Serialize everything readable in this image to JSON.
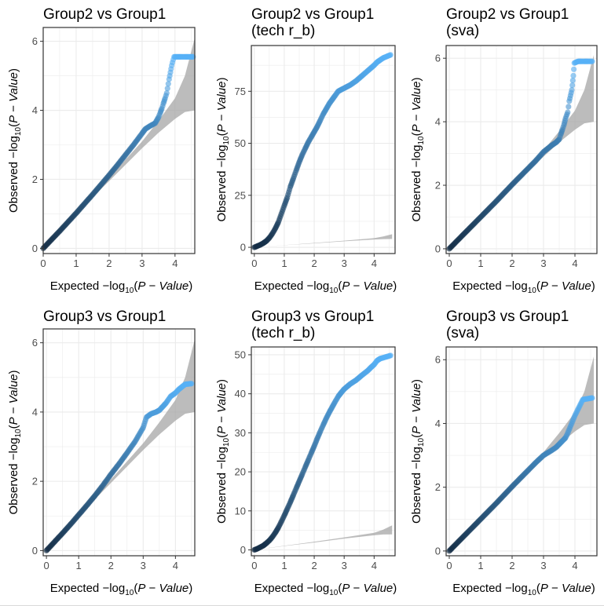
{
  "chart_data": [
    {
      "type": "scatter",
      "title": [
        "Group2 vs Group1"
      ],
      "xlabel": "Expected  -log10(P - Value)",
      "ylabel": "Observed  -log10(P - Value)",
      "xlim": [
        0,
        4.6
      ],
      "ylim": [
        -0.15,
        6.4
      ],
      "xticks": [
        0,
        1,
        2,
        3,
        4
      ],
      "yticks": [
        0,
        2,
        4,
        6
      ],
      "grid": true,
      "points": [
        [
          0,
          0
        ],
        [
          0.25,
          0.25
        ],
        [
          0.5,
          0.5
        ],
        [
          0.75,
          0.76
        ],
        [
          1,
          1.02
        ],
        [
          1.25,
          1.29
        ],
        [
          1.5,
          1.56
        ],
        [
          1.75,
          1.84
        ],
        [
          2,
          2.12
        ],
        [
          2.25,
          2.41
        ],
        [
          2.5,
          2.71
        ],
        [
          2.75,
          3.01
        ],
        [
          3,
          3.33
        ],
        [
          3.1,
          3.46
        ],
        [
          3.25,
          3.55
        ],
        [
          3.4,
          3.63
        ],
        [
          3.5,
          3.8
        ],
        [
          3.55,
          3.92
        ],
        [
          3.6,
          4.05
        ],
        [
          3.65,
          4.2
        ],
        [
          3.7,
          4.35
        ],
        [
          3.75,
          4.5
        ],
        [
          3.82,
          4.9
        ],
        [
          3.9,
          5.3
        ],
        [
          3.97,
          5.55
        ],
        [
          4.1,
          5.55
        ],
        [
          4.2,
          5.55
        ],
        [
          4.3,
          5.55
        ],
        [
          4.4,
          5.55
        ],
        [
          4.55,
          5.55
        ]
      ],
      "ci_band": {
        "x": [
          0,
          1,
          2,
          3,
          3.5,
          4,
          4.3,
          4.6
        ],
        "lower": [
          0,
          1,
          1.95,
          2.9,
          3.35,
          3.75,
          3.95,
          4.0
        ],
        "upper": [
          0,
          1,
          2.05,
          3.1,
          3.7,
          4.35,
          5.0,
          6.1
        ]
      }
    },
    {
      "type": "scatter",
      "title": [
        "Group2 vs Group1",
        "(tech r_b)"
      ],
      "xlabel": "Expected  -log10(P - Value)",
      "ylabel": "Observed  -log10(P - Value)",
      "xlim": [
        -0.1,
        4.7
      ],
      "ylim": [
        -3,
        97
      ],
      "xticks": [
        0,
        1,
        2,
        3,
        4
      ],
      "yticks": [
        0,
        25,
        50,
        75
      ],
      "grid": true,
      "points": [
        [
          0,
          0
        ],
        [
          0.1,
          0.6
        ],
        [
          0.2,
          1.2
        ],
        [
          0.3,
          2
        ],
        [
          0.4,
          3
        ],
        [
          0.5,
          4.5
        ],
        [
          0.6,
          6.5
        ],
        [
          0.7,
          9
        ],
        [
          0.8,
          12
        ],
        [
          0.9,
          16
        ],
        [
          1,
          20
        ],
        [
          1.1,
          24
        ],
        [
          1.2,
          29
        ],
        [
          1.3,
          33
        ],
        [
          1.4,
          37
        ],
        [
          1.5,
          41
        ],
        [
          1.6,
          44.5
        ],
        [
          1.7,
          47.5
        ],
        [
          1.8,
          50.5
        ],
        [
          1.9,
          53
        ],
        [
          2,
          55.5
        ],
        [
          2.1,
          58
        ],
        [
          2.2,
          61
        ],
        [
          2.3,
          64
        ],
        [
          2.4,
          66.5
        ],
        [
          2.5,
          69
        ],
        [
          2.6,
          71
        ],
        [
          2.7,
          73
        ],
        [
          2.8,
          75
        ],
        [
          3,
          76.5
        ],
        [
          3.2,
          78
        ],
        [
          3.4,
          80
        ],
        [
          3.6,
          82.5
        ],
        [
          3.8,
          85
        ],
        [
          4,
          87.5
        ],
        [
          4.1,
          89
        ],
        [
          4.2,
          90
        ],
        [
          4.3,
          91
        ],
        [
          4.55,
          92.5
        ]
      ],
      "ci_band": {
        "x": [
          0,
          1,
          2,
          3,
          4,
          4.3,
          4.6
        ],
        "lower": [
          0,
          1,
          1.9,
          2.9,
          3.75,
          3.95,
          4.0
        ],
        "upper": [
          0,
          1.05,
          2.1,
          3.2,
          4.4,
          5.2,
          6.3
        ]
      }
    },
    {
      "type": "scatter",
      "title": [
        "Group2 vs Group1",
        "(sva)"
      ],
      "xlabel": "Expected  -log10(P - Value)",
      "ylabel": "Observed  -log10(P - Value)",
      "xlim": [
        -0.1,
        4.7
      ],
      "ylim": [
        -0.15,
        6.4
      ],
      "xticks": [
        0,
        1,
        2,
        3,
        4
      ],
      "yticks": [
        0,
        2,
        4,
        6
      ],
      "grid": true,
      "points": [
        [
          0,
          0
        ],
        [
          0.25,
          0.25
        ],
        [
          0.5,
          0.5
        ],
        [
          0.75,
          0.75
        ],
        [
          1,
          1.0
        ],
        [
          1.25,
          1.25
        ],
        [
          1.5,
          1.5
        ],
        [
          1.75,
          1.76
        ],
        [
          2,
          2.02
        ],
        [
          2.25,
          2.27
        ],
        [
          2.5,
          2.52
        ],
        [
          2.75,
          2.77
        ],
        [
          3,
          3.05
        ],
        [
          3.25,
          3.25
        ],
        [
          3.4,
          3.35
        ],
        [
          3.5,
          3.45
        ],
        [
          3.55,
          3.6
        ],
        [
          3.6,
          3.75
        ],
        [
          3.65,
          3.9
        ],
        [
          3.7,
          4.1
        ],
        [
          3.77,
          4.3
        ],
        [
          3.82,
          4.65
        ],
        [
          3.9,
          5.0
        ],
        [
          3.95,
          5.45
        ],
        [
          3.98,
          5.85
        ],
        [
          4.1,
          5.9
        ],
        [
          4.2,
          5.9
        ],
        [
          4.3,
          5.9
        ],
        [
          4.4,
          5.9
        ],
        [
          4.55,
          5.9
        ]
      ],
      "ci_band": {
        "x": [
          0,
          1,
          2,
          3,
          3.5,
          4,
          4.3,
          4.6
        ],
        "lower": [
          0,
          1,
          1.95,
          2.9,
          3.35,
          3.75,
          3.95,
          4.0
        ],
        "upper": [
          0,
          1,
          2.05,
          3.1,
          3.7,
          4.35,
          5.0,
          6.1
        ]
      }
    },
    {
      "type": "scatter",
      "title": [
        "Group3 vs Group1"
      ],
      "xlabel": "Expected  -log10(P - Value)",
      "ylabel": "Observed  -log10(P - Value)",
      "xlim": [
        -0.1,
        4.6
      ],
      "ylim": [
        -0.15,
        6.4
      ],
      "xticks": [
        0,
        1,
        2,
        3,
        4
      ],
      "yticks": [
        0,
        2,
        4,
        6
      ],
      "grid": true,
      "points": [
        [
          0,
          0
        ],
        [
          0.25,
          0.25
        ],
        [
          0.5,
          0.5
        ],
        [
          0.75,
          0.76
        ],
        [
          1,
          1.03
        ],
        [
          1.25,
          1.3
        ],
        [
          1.5,
          1.58
        ],
        [
          1.75,
          1.88
        ],
        [
          2,
          2.2
        ],
        [
          2.25,
          2.5
        ],
        [
          2.5,
          2.82
        ],
        [
          2.75,
          3.15
        ],
        [
          3,
          3.55
        ],
        [
          3.1,
          3.85
        ],
        [
          3.25,
          3.95
        ],
        [
          3.4,
          4.0
        ],
        [
          3.5,
          4.05
        ],
        [
          3.6,
          4.15
        ],
        [
          3.7,
          4.25
        ],
        [
          3.85,
          4.45
        ],
        [
          4.0,
          4.55
        ],
        [
          4.1,
          4.65
        ],
        [
          4.3,
          4.8
        ],
        [
          4.5,
          4.82
        ]
      ],
      "ci_band": {
        "x": [
          0,
          1,
          2,
          3,
          3.5,
          4,
          4.3,
          4.6
        ],
        "lower": [
          0,
          1,
          1.95,
          2.9,
          3.35,
          3.75,
          3.95,
          4.0
        ],
        "upper": [
          0,
          1,
          2.05,
          3.1,
          3.7,
          4.35,
          5.0,
          6.1
        ]
      }
    },
    {
      "type": "scatter",
      "title": [
        "Group3 vs Group1",
        "(tech r_b)"
      ],
      "xlabel": "Expected  -log10(P - Value)",
      "ylabel": "Observed  -log10(P - Value)",
      "xlim": [
        -0.1,
        4.7
      ],
      "ylim": [
        -1.5,
        52
      ],
      "xticks": [
        0,
        1,
        2,
        3,
        4
      ],
      "yticks": [
        0,
        10,
        20,
        30,
        40,
        50
      ],
      "grid": true,
      "points": [
        [
          0,
          0
        ],
        [
          0.1,
          0.3
        ],
        [
          0.2,
          0.7
        ],
        [
          0.3,
          1.1
        ],
        [
          0.4,
          1.7
        ],
        [
          0.5,
          2.4
        ],
        [
          0.6,
          3.3
        ],
        [
          0.7,
          4.4
        ],
        [
          0.8,
          5.7
        ],
        [
          0.9,
          7.2
        ],
        [
          1,
          8.8
        ],
        [
          1.1,
          10.5
        ],
        [
          1.2,
          12.2
        ],
        [
          1.3,
          14
        ],
        [
          1.4,
          15.8
        ],
        [
          1.5,
          17.6
        ],
        [
          1.6,
          19.4
        ],
        [
          1.7,
          21.2
        ],
        [
          1.8,
          23
        ],
        [
          1.9,
          24.8
        ],
        [
          2,
          26.6
        ],
        [
          2.1,
          28.5
        ],
        [
          2.2,
          30.3
        ],
        [
          2.3,
          32
        ],
        [
          2.4,
          33.7
        ],
        [
          2.5,
          35.2
        ],
        [
          2.6,
          36.6
        ],
        [
          2.7,
          38
        ],
        [
          2.8,
          39.3
        ],
        [
          2.9,
          40.3
        ],
        [
          3,
          41.2
        ],
        [
          3.2,
          42.5
        ],
        [
          3.4,
          43.5
        ],
        [
          3.6,
          44.8
        ],
        [
          3.8,
          46
        ],
        [
          3.9,
          46.8
        ],
        [
          4,
          47.5
        ],
        [
          4.1,
          48.5
        ],
        [
          4.2,
          49
        ],
        [
          4.55,
          49.8
        ]
      ],
      "ci_band": {
        "x": [
          0,
          1,
          2,
          3,
          4,
          4.3,
          4.6
        ],
        "lower": [
          0,
          1,
          1.9,
          2.9,
          3.75,
          3.95,
          4.0
        ],
        "upper": [
          0,
          1.05,
          2.1,
          3.2,
          4.4,
          5.2,
          6.3
        ]
      }
    },
    {
      "type": "scatter",
      "title": [
        "Group3 vs Group1",
        "(sva)"
      ],
      "xlabel": "Expected  -log10(P - Value)",
      "ylabel": "Observed  -log10(P - Value)",
      "xlim": [
        -0.1,
        4.7
      ],
      "ylim": [
        -0.15,
        6.4
      ],
      "xticks": [
        0,
        1,
        2,
        3,
        4
      ],
      "yticks": [
        0,
        2,
        4,
        6
      ],
      "grid": true,
      "points": [
        [
          0,
          0
        ],
        [
          0.25,
          0.25
        ],
        [
          0.5,
          0.5
        ],
        [
          0.75,
          0.75
        ],
        [
          1,
          1.0
        ],
        [
          1.25,
          1.25
        ],
        [
          1.5,
          1.5
        ],
        [
          1.75,
          1.76
        ],
        [
          2,
          2.02
        ],
        [
          2.25,
          2.27
        ],
        [
          2.5,
          2.52
        ],
        [
          2.75,
          2.77
        ],
        [
          3,
          3.0
        ],
        [
          3.25,
          3.15
        ],
        [
          3.4,
          3.25
        ],
        [
          3.5,
          3.35
        ],
        [
          3.6,
          3.45
        ],
        [
          3.65,
          3.5
        ],
        [
          3.7,
          3.55
        ],
        [
          3.75,
          3.65
        ],
        [
          4.0,
          4.25
        ],
        [
          4.25,
          4.75
        ],
        [
          4.55,
          4.8
        ]
      ],
      "ci_band": {
        "x": [
          0,
          1,
          2,
          3,
          3.5,
          4,
          4.3,
          4.6
        ],
        "lower": [
          0,
          1,
          1.95,
          2.9,
          3.35,
          3.75,
          3.95,
          4.0
        ],
        "upper": [
          0,
          1,
          2.05,
          3.1,
          3.7,
          4.35,
          5.0,
          6.1
        ]
      }
    }
  ],
  "colors": {
    "point_low": "#132B43",
    "point_high": "#56B1F7",
    "ci_band": "#A6A6A6",
    "grid": "#EBEBEB",
    "panel_border": "#333333"
  }
}
